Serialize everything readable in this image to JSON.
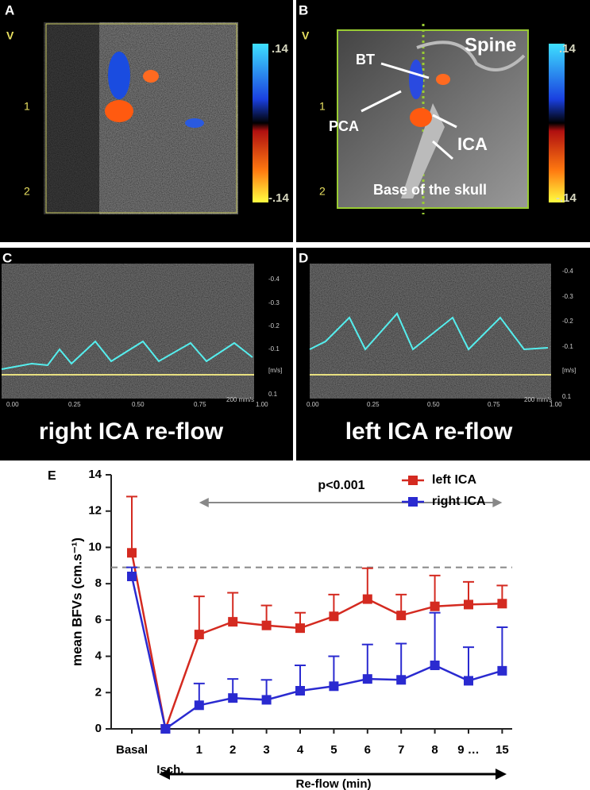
{
  "panel_a": {
    "letter": "A",
    "depth_unit": "V",
    "depth_ticks": [
      "1",
      "2"
    ],
    "scale_max": ".14",
    "scale_min": "-.14"
  },
  "panel_b": {
    "letter": "B",
    "depth_unit": "V",
    "depth_ticks": [
      "1",
      "2"
    ],
    "scale_max": ".14",
    "scale_min": "-.14",
    "labels": {
      "bt": "BT",
      "spine": "Spine",
      "pca": "PCA",
      "ica": "ICA",
      "skull": "Base of the skull"
    }
  },
  "panel_c": {
    "letter": "C",
    "time_ticks": [
      "0.00",
      "0.25",
      "0.50",
      "0.75",
      "1.00"
    ],
    "speed": "200 mm/s",
    "velocity_ticks": [
      "-0.4",
      "-0.3",
      "-0.2",
      "-0.1",
      "[m/s]",
      "0.1"
    ],
    "caption": "right ICA re-flow"
  },
  "panel_d": {
    "letter": "D",
    "time_ticks": [
      "0.00",
      "0.25",
      "0.50",
      "0.75",
      "1.00"
    ],
    "speed": "200 mm/s",
    "velocity_ticks": [
      "-0.4",
      "-0.3",
      "-0.2",
      "-0.1",
      "[m/s]",
      "0.1"
    ],
    "caption": "left ICA re-flow"
  },
  "chart_data": {
    "type": "line",
    "letter": "E",
    "ylabel": "mean BFVs (cm.s⁻¹)",
    "xlabel": "Re-flow (min)",
    "annotation": "p<0.001",
    "categories": [
      "Basal",
      "Isch.",
      "1",
      "2",
      "3",
      "4",
      "5",
      "6",
      "7",
      "8",
      "9 …",
      "15"
    ],
    "series": [
      {
        "name": "left ICA",
        "color": "#d42a20",
        "values": [
          9.7,
          0,
          5.2,
          5.9,
          5.7,
          5.55,
          6.2,
          7.15,
          6.25,
          6.75,
          6.85,
          6.9
        ],
        "errors": [
          3.1,
          0,
          2.1,
          1.6,
          1.1,
          0.85,
          1.2,
          1.7,
          1.15,
          1.7,
          1.25,
          1.0
        ]
      },
      {
        "name": "right ICA",
        "color": "#2a2ad0",
        "values": [
          8.4,
          0,
          1.3,
          1.7,
          1.6,
          2.1,
          2.35,
          2.75,
          2.7,
          3.5,
          2.65,
          3.2
        ],
        "errors": [
          0.5,
          0,
          1.2,
          1.05,
          1.1,
          1.4,
          1.65,
          1.9,
          2.0,
          2.9,
          1.85,
          2.4
        ]
      }
    ],
    "reference_line": 8.9,
    "ylim": [
      0,
      14
    ],
    "yticks": [
      0,
      2,
      4,
      6,
      8,
      10,
      12,
      14
    ],
    "legend": "top-right"
  }
}
